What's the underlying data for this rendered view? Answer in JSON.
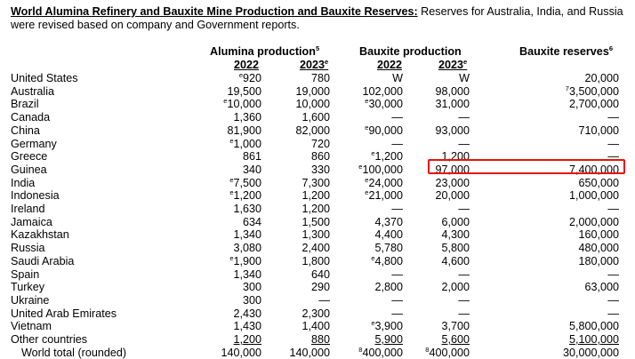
{
  "title": {
    "bold": "World Alumina Refinery and Bauxite Mine Production and Bauxite Reserves:",
    "rest": " Reserves for Australia, India, and Russia were revised based on company and Government reports."
  },
  "headers": {
    "alumina": "Alumina production",
    "alumina_sup": "5",
    "bauxite": "Bauxite production",
    "reserves": "Bauxite reserves",
    "reserves_sup": "6",
    "y1": "2022",
    "y2": "2023",
    "y2_sup": "e"
  },
  "rows": [
    {
      "name": "United States",
      "a22": {
        "p": "e",
        "v": "920"
      },
      "a23": {
        "p": "",
        "v": "780"
      },
      "b22": {
        "p": "",
        "v": "W"
      },
      "b23": {
        "p": "",
        "v": "W"
      },
      "r": {
        "p": "",
        "v": "20,000"
      }
    },
    {
      "name": "Australia",
      "a22": {
        "p": "",
        "v": "19,500"
      },
      "a23": {
        "p": "",
        "v": "19,000"
      },
      "b22": {
        "p": "",
        "v": "102,000"
      },
      "b23": {
        "p": "",
        "v": "98,000"
      },
      "r": {
        "p": "7",
        "v": "3,500,000"
      }
    },
    {
      "name": "Brazil",
      "a22": {
        "p": "e",
        "v": "10,000"
      },
      "a23": {
        "p": "",
        "v": "10,000"
      },
      "b22": {
        "p": "e",
        "v": "30,000"
      },
      "b23": {
        "p": "",
        "v": "31,000"
      },
      "r": {
        "p": "",
        "v": "2,700,000"
      }
    },
    {
      "name": "Canada",
      "a22": {
        "p": "",
        "v": "1,360"
      },
      "a23": {
        "p": "",
        "v": "1,600"
      },
      "b22": {
        "p": "",
        "v": "—"
      },
      "b23": {
        "p": "",
        "v": "—"
      },
      "r": {
        "p": "",
        "v": "—"
      }
    },
    {
      "name": "China",
      "a22": {
        "p": "",
        "v": "81,900"
      },
      "a23": {
        "p": "",
        "v": "82,000"
      },
      "b22": {
        "p": "e",
        "v": "90,000"
      },
      "b23": {
        "p": "",
        "v": "93,000"
      },
      "r": {
        "p": "",
        "v": "710,000"
      }
    },
    {
      "name": "Germany",
      "a22": {
        "p": "e",
        "v": "1,000"
      },
      "a23": {
        "p": "",
        "v": "720"
      },
      "b22": {
        "p": "",
        "v": "—"
      },
      "b23": {
        "p": "",
        "v": "—"
      },
      "r": {
        "p": "",
        "v": "—"
      }
    },
    {
      "name": "Greece",
      "a22": {
        "p": "",
        "v": "861"
      },
      "a23": {
        "p": "",
        "v": "860"
      },
      "b22": {
        "p": "e",
        "v": "1,200"
      },
      "b23": {
        "p": "",
        "v": "1,200"
      },
      "r": {
        "p": "",
        "v": "—"
      }
    },
    {
      "name": "Guinea",
      "a22": {
        "p": "",
        "v": "340"
      },
      "a23": {
        "p": "",
        "v": "330"
      },
      "b22": {
        "p": "e",
        "v": "100,000"
      },
      "b23": {
        "p": "",
        "v": "97,000"
      },
      "r": {
        "p": "",
        "v": "7,400,000"
      }
    },
    {
      "name": "India",
      "a22": {
        "p": "e",
        "v": "7,500"
      },
      "a23": {
        "p": "",
        "v": "7,300"
      },
      "b22": {
        "p": "e",
        "v": "24,000"
      },
      "b23": {
        "p": "",
        "v": "23,000"
      },
      "r": {
        "p": "",
        "v": "650,000"
      }
    },
    {
      "name": "Indonesia",
      "a22": {
        "p": "e",
        "v": "1,200"
      },
      "a23": {
        "p": "",
        "v": "1,200"
      },
      "b22": {
        "p": "e",
        "v": "21,000"
      },
      "b23": {
        "p": "",
        "v": "20,000"
      },
      "r": {
        "p": "",
        "v": "1,000,000"
      }
    },
    {
      "name": "Ireland",
      "a22": {
        "p": "",
        "v": "1,630"
      },
      "a23": {
        "p": "",
        "v": "1,200"
      },
      "b22": {
        "p": "",
        "v": "—"
      },
      "b23": {
        "p": "",
        "v": "—"
      },
      "r": {
        "p": "",
        "v": "—"
      }
    },
    {
      "name": "Jamaica",
      "a22": {
        "p": "",
        "v": "634"
      },
      "a23": {
        "p": "",
        "v": "1,500"
      },
      "b22": {
        "p": "",
        "v": "4,370"
      },
      "b23": {
        "p": "",
        "v": "6,000"
      },
      "r": {
        "p": "",
        "v": "2,000,000"
      }
    },
    {
      "name": "Kazakhstan",
      "a22": {
        "p": "",
        "v": "1,340"
      },
      "a23": {
        "p": "",
        "v": "1,300"
      },
      "b22": {
        "p": "",
        "v": "4,400"
      },
      "b23": {
        "p": "",
        "v": "4,300"
      },
      "r": {
        "p": "",
        "v": "160,000"
      }
    },
    {
      "name": "Russia",
      "a22": {
        "p": "",
        "v": "3,080"
      },
      "a23": {
        "p": "",
        "v": "2,400"
      },
      "b22": {
        "p": "",
        "v": "5,780"
      },
      "b23": {
        "p": "",
        "v": "5,800"
      },
      "r": {
        "p": "",
        "v": "480,000"
      }
    },
    {
      "name": "Saudi Arabia",
      "a22": {
        "p": "e",
        "v": "1,900"
      },
      "a23": {
        "p": "",
        "v": "1,800"
      },
      "b22": {
        "p": "e",
        "v": "4,800"
      },
      "b23": {
        "p": "",
        "v": "4,600"
      },
      "r": {
        "p": "",
        "v": "180,000"
      }
    },
    {
      "name": "Spain",
      "a22": {
        "p": "",
        "v": "1,340"
      },
      "a23": {
        "p": "",
        "v": "640"
      },
      "b22": {
        "p": "",
        "v": "—"
      },
      "b23": {
        "p": "",
        "v": "—"
      },
      "r": {
        "p": "",
        "v": "—"
      }
    },
    {
      "name": "Turkey",
      "a22": {
        "p": "",
        "v": "300"
      },
      "a23": {
        "p": "",
        "v": "290"
      },
      "b22": {
        "p": "",
        "v": "2,800"
      },
      "b23": {
        "p": "",
        "v": "2,000"
      },
      "r": {
        "p": "",
        "v": "63,000"
      }
    },
    {
      "name": "Ukraine",
      "a22": {
        "p": "",
        "v": "300"
      },
      "a23": {
        "p": "",
        "v": "—"
      },
      "b22": {
        "p": "",
        "v": "—"
      },
      "b23": {
        "p": "",
        "v": "—"
      },
      "r": {
        "p": "",
        "v": "—"
      }
    },
    {
      "name": "United Arab Emirates",
      "a22": {
        "p": "",
        "v": "2,430"
      },
      "a23": {
        "p": "",
        "v": "2,300"
      },
      "b22": {
        "p": "",
        "v": "—"
      },
      "b23": {
        "p": "",
        "v": "—"
      },
      "r": {
        "p": "",
        "v": "—"
      }
    },
    {
      "name": "Vietnam",
      "a22": {
        "p": "",
        "v": "1,430"
      },
      "a23": {
        "p": "",
        "v": "1,400"
      },
      "b22": {
        "p": "e",
        "v": "3,900"
      },
      "b23": {
        "p": "",
        "v": "3,700"
      },
      "r": {
        "p": "",
        "v": "5,800,000"
      }
    },
    {
      "name": "Other countries",
      "a22": {
        "p": "",
        "v": "1,200"
      },
      "a23": {
        "p": "",
        "v": "880"
      },
      "b22": {
        "p": "",
        "v": "5,900"
      },
      "b23": {
        "p": "",
        "v": "5,600"
      },
      "r": {
        "p": "",
        "v": "5,100,000"
      }
    },
    {
      "name": "World total (rounded)",
      "a22": {
        "p": "",
        "v": "140,000"
      },
      "a23": {
        "p": "",
        "v": "140,000"
      },
      "b22": {
        "p": "8",
        "v": "400,000"
      },
      "b23": {
        "p": "8",
        "v": "400,000"
      },
      "r": {
        "p": "",
        "v": "30,000,000"
      }
    }
  ],
  "highlight_color": "#e8120c"
}
